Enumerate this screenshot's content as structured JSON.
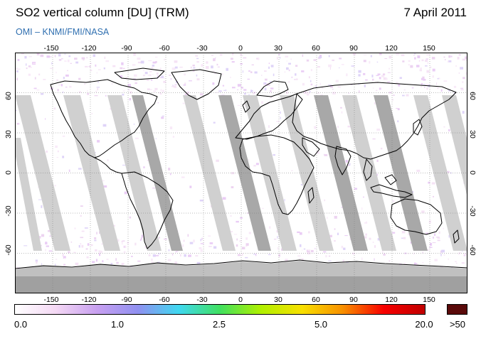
{
  "header": {
    "title": "SO2 vertical column [DU] (TRM)",
    "date": "7 April 2011",
    "subtitle": "OMI  –  KNMI/FMI/NASA"
  },
  "map": {
    "projection": "equirectangular",
    "lon_range": [
      -180,
      180
    ],
    "lat_range": [
      -90,
      90
    ],
    "lon_ticks": [
      "-150",
      "-120",
      "-90",
      "-60",
      "-30",
      "0",
      "30",
      "60",
      "90",
      "120",
      "150"
    ],
    "lat_ticks": [
      "60",
      "30",
      "0",
      "-30",
      "-60"
    ],
    "colors": {
      "land_outline": "#000000",
      "no_data_swath": "#d0d0d0",
      "no_data_dark": "#a8a8a8",
      "polar_no_data": "#a0a0a0"
    }
  },
  "colorbar": {
    "labels": [
      "0.0",
      "1.0",
      "2.5",
      "5.0",
      "20.0",
      ">50"
    ],
    "gradient_colors": [
      "#ffffff",
      "#f4d8f4",
      "#c8a0f0",
      "#9090f0",
      "#40d8f0",
      "#40e060",
      "#b0f000",
      "#f8e000",
      "#f89000",
      "#f80000",
      "#c00000"
    ],
    "saturation_color": "#5a0a0a"
  }
}
